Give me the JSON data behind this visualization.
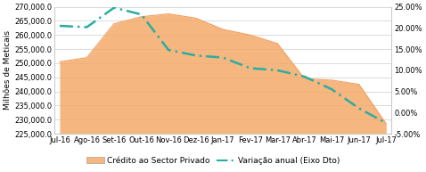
{
  "categories": [
    "Jul-16",
    "Ago-16",
    "Set-16",
    "Out-16",
    "Nov-16",
    "Dez-16",
    "Jan-17",
    "Fev-17",
    "Mar-17",
    "Abr-17",
    "Mai-17",
    "Jun-17",
    "Jul-17"
  ],
  "credito": [
    250500,
    252000,
    264000,
    266500,
    267500,
    266000,
    262000,
    260000,
    257000,
    244500,
    244000,
    242500,
    228500
  ],
  "variacao": [
    20.5,
    20.2,
    24.8,
    23.2,
    14.8,
    13.5,
    13.0,
    10.5,
    10.0,
    8.5,
    5.5,
    1.0,
    -2.5
  ],
  "ylabel_left": "Milhões de Meticais",
  "ylim_left": [
    225000,
    270000
  ],
  "ylim_right": [
    -5,
    25
  ],
  "yticks_left": [
    225000,
    230000,
    235000,
    240000,
    245000,
    250000,
    255000,
    260000,
    265000,
    270000
  ],
  "yticks_right": [
    -5,
    0,
    5,
    10,
    15,
    20,
    25
  ],
  "ytick_labels_left": [
    "225,000.0",
    "230,000.0",
    "235,000.0",
    "240,000.0",
    "245,000.0",
    "250,000.0",
    "255,000.0",
    "260,000.0",
    "265,000.0",
    "270,000.0"
  ],
  "ytick_labels_right": [
    "-5.00%",
    "0.00%",
    "5.00%",
    "10.00%",
    "15.00%",
    "20.00%",
    "25.00%"
  ],
  "fill_color": "#F5A96A",
  "fill_alpha": 0.85,
  "fill_edge_color": "#F0A060",
  "line_color": "#2AADA0",
  "legend_label_1": "Crédito ao Sector Privado",
  "legend_label_2": "Variação anual (Eixo Dto)",
  "bg_color": "#FFFFFF",
  "grid_color": "#CCCCCC",
  "tick_fontsize": 6.0,
  "ylabel_fontsize": 6.5
}
